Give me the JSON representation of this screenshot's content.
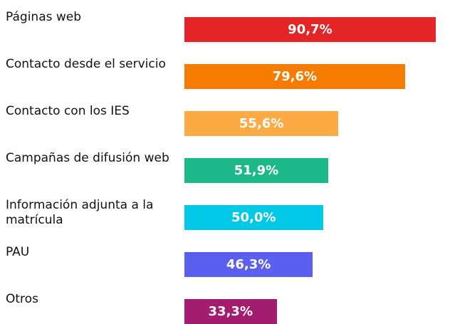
{
  "chart_data": {
    "type": "bar",
    "orientation": "horizontal",
    "categories": [
      "Páginas web",
      "Contacto desde el servicio",
      "Contacto con los IES",
      "Campañas de difusión web",
      "Información adjunta a la matrícula",
      "PAU",
      "Otros"
    ],
    "values": [
      90.7,
      79.6,
      55.6,
      51.9,
      50.0,
      46.3,
      33.3
    ],
    "value_labels": [
      "90,7%",
      "79,6%",
      "55,6%",
      "51,9%",
      "50,0%",
      "46,3%",
      "33,3%"
    ],
    "colors": [
      "#e42528",
      "#f57c00",
      "#fbaa44",
      "#1db88a",
      "#00c8e6",
      "#5a5ff0",
      "#a31d6f"
    ],
    "xlim": [
      0,
      100
    ]
  }
}
